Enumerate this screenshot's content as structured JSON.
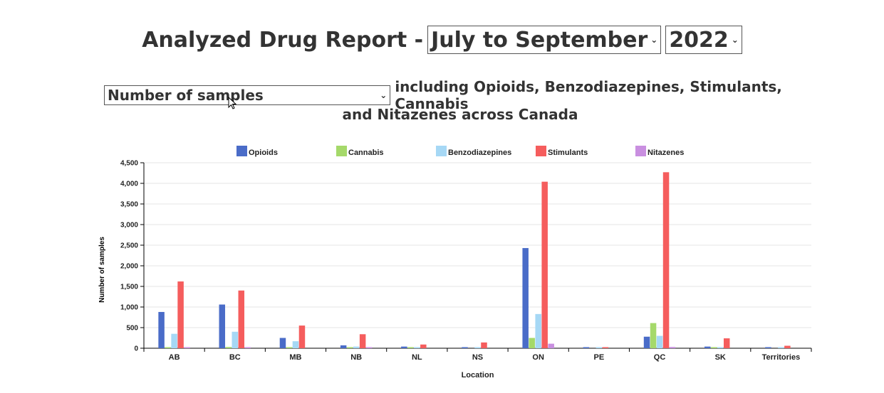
{
  "header": {
    "title_prefix": "Analyzed Drug Report -",
    "period_select": "July to September",
    "year_select": "2022"
  },
  "subheader": {
    "metric_select": "Number of samples",
    "description_line1": "including Opioids, Benzodiazepines, Stimulants, Cannabis",
    "description_line2": "and Nitazenes across Canada"
  },
  "chart_data": {
    "type": "bar",
    "xlabel": "Location",
    "ylabel": "Number of samples",
    "ylim": [
      0,
      4500
    ],
    "yticks": [
      0,
      500,
      1000,
      1500,
      2000,
      2500,
      3000,
      3500,
      4000,
      4500
    ],
    "ytick_labels": [
      "0",
      "500",
      "1,000",
      "1,500",
      "2,000",
      "2,500",
      "3,000",
      "3,500",
      "4,000",
      "4,500"
    ],
    "grid": true,
    "legend_position": "top",
    "categories": [
      "AB",
      "BC",
      "MB",
      "NB",
      "NL",
      "NS",
      "ON",
      "PE",
      "QC",
      "SK",
      "Territories"
    ],
    "series": [
      {
        "name": "Opioids",
        "color": "#4a6cc8",
        "values": [
          880,
          1060,
          250,
          70,
          40,
          5,
          2430,
          10,
          280,
          40,
          10
        ]
      },
      {
        "name": "Cannabis",
        "color": "#a5d96a",
        "values": [
          10,
          30,
          10,
          5,
          5,
          0,
          250,
          0,
          610,
          5,
          0
        ]
      },
      {
        "name": "Benzodiazepines",
        "color": "#a6d8f5",
        "values": [
          350,
          400,
          170,
          40,
          10,
          20,
          830,
          20,
          300,
          20,
          20
        ]
      },
      {
        "name": "Stimulants",
        "color": "#f55d5d",
        "values": [
          1620,
          1400,
          550,
          340,
          90,
          140,
          4040,
          20,
          4270,
          240,
          60
        ]
      },
      {
        "name": "Nitazenes",
        "color": "#c98fe0",
        "values": [
          5,
          10,
          0,
          10,
          0,
          0,
          110,
          0,
          30,
          0,
          0
        ]
      }
    ]
  }
}
